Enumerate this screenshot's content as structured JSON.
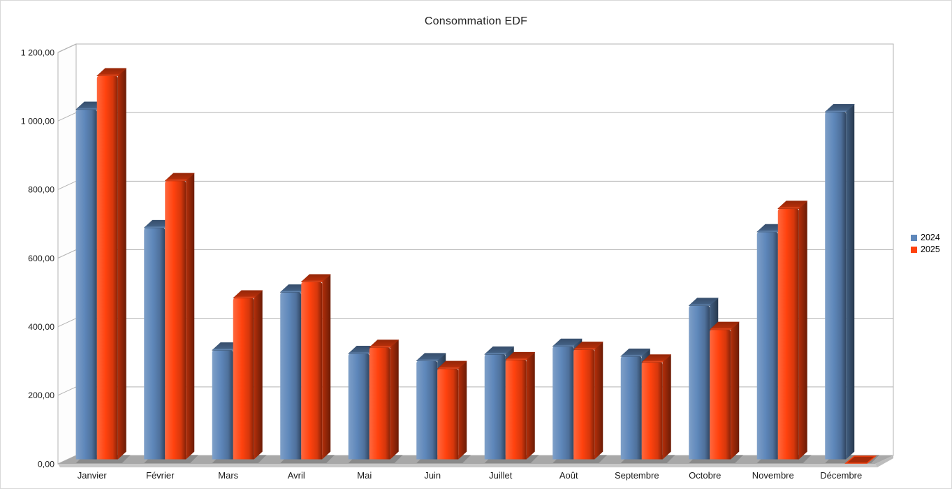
{
  "chart_data": {
    "type": "bar",
    "style": "3d-bar",
    "title": "Consommation EDF",
    "xlabel": "",
    "ylabel": "",
    "ylim": [
      0,
      1200
    ],
    "grid": true,
    "legend_position": "right",
    "background_color": "#FFFFFF",
    "wall_line_color": "#B3B3B3",
    "floor_color": "#A8A8A8",
    "categories": [
      "Janvier",
      "Février",
      "Mars",
      "Avril",
      "Mai",
      "Juin",
      "Juillet",
      "Août",
      "Septembre",
      "Octobre",
      "Novembre",
      "Décembre"
    ],
    "series": [
      {
        "name": "2024",
        "color": "#5E87BA",
        "values": [
          1020,
          675,
          318,
          487,
          308,
          287,
          306,
          329,
          300,
          448,
          663,
          1013
        ]
      },
      {
        "name": "2025",
        "color": "#FF420E",
        "values": [
          1118,
          812,
          470,
          517,
          326,
          264,
          290,
          320,
          283,
          378,
          731,
          0
        ]
      }
    ],
    "y_ticks": [
      {
        "value": 0,
        "label": "0,00"
      },
      {
        "value": 200,
        "label": "200,00"
      },
      {
        "value": 400,
        "label": "400,00"
      },
      {
        "value": 600,
        "label": "600,00"
      },
      {
        "value": 800,
        "label": "800,00"
      },
      {
        "value": 1000,
        "label": "1 000,00"
      },
      {
        "value": 1200,
        "label": "1 200,00"
      }
    ]
  }
}
